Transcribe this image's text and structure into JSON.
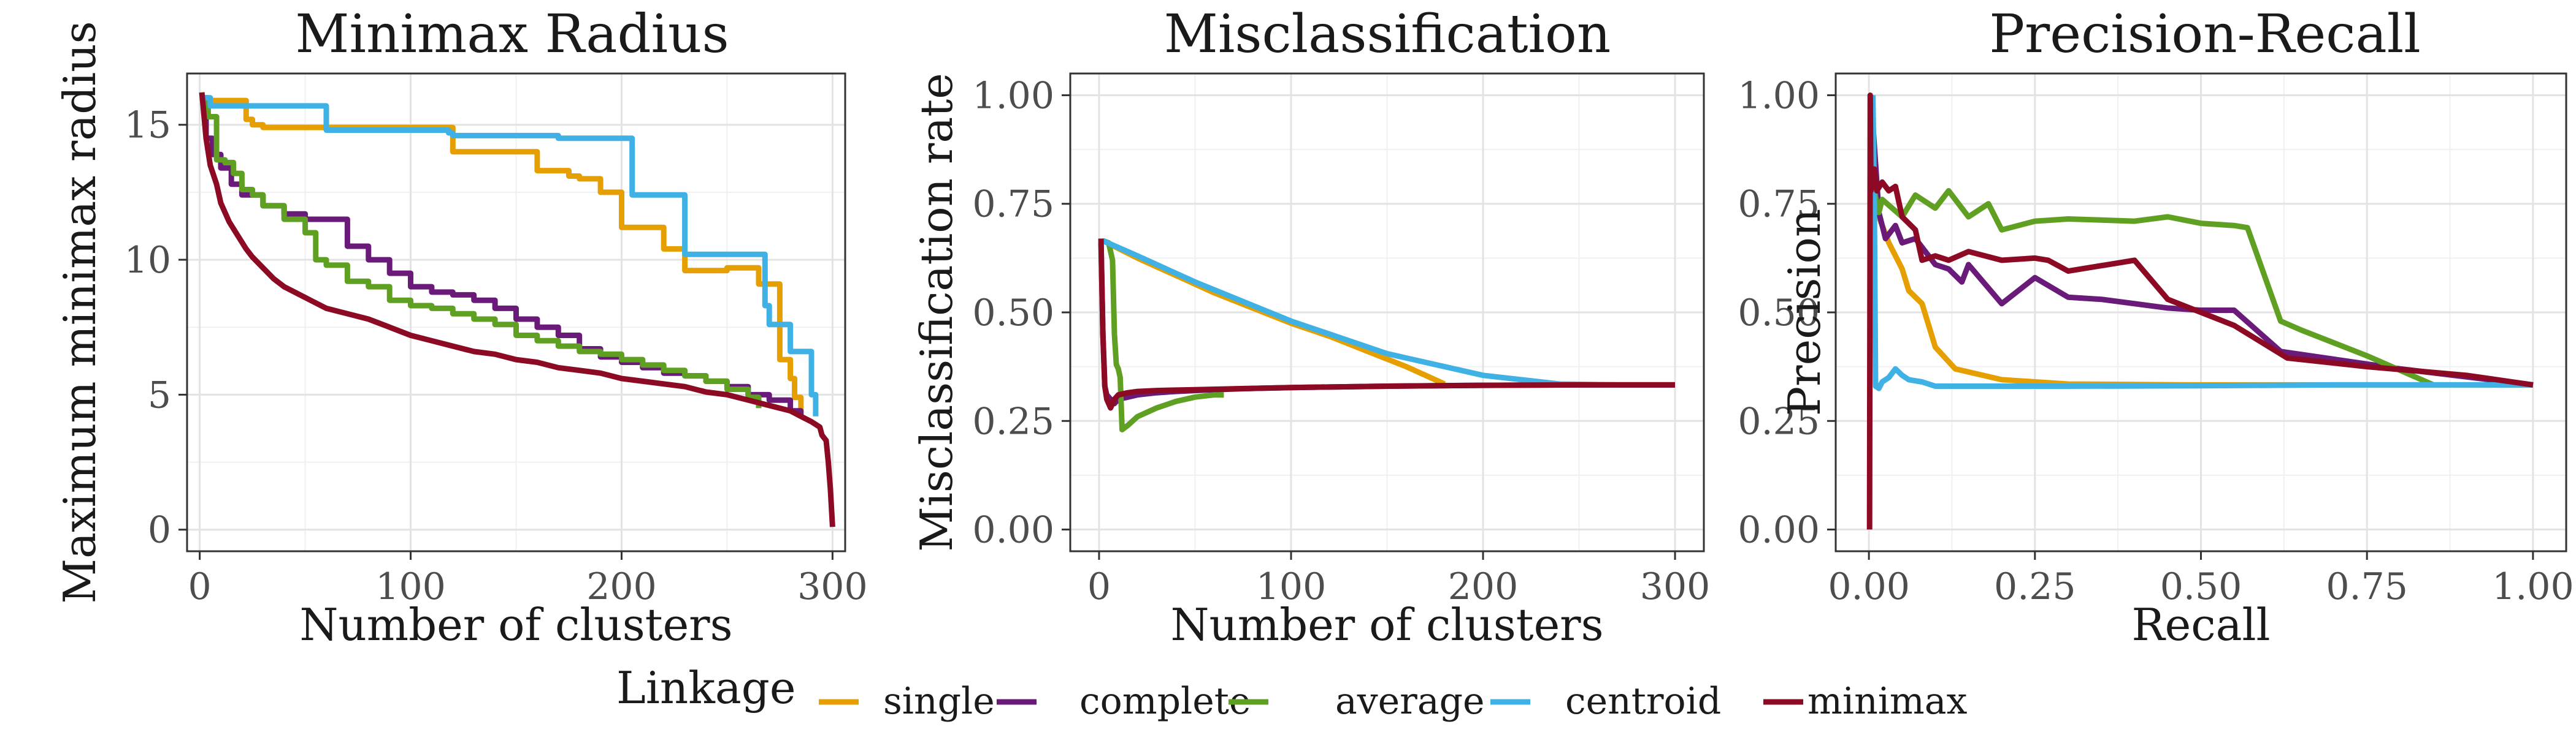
{
  "figure": {
    "legend_title": "Linkage"
  },
  "series_meta": [
    {
      "name": "single",
      "color": "#E69F00"
    },
    {
      "name": "complete",
      "color": "#6A1B7A"
    },
    {
      "name": "average",
      "color": "#5FA023"
    },
    {
      "name": "centroid",
      "color": "#3FB1E5"
    },
    {
      "name": "minimax",
      "color": "#8C0A24"
    }
  ],
  "chart_data": [
    {
      "type": "line",
      "title": "Minimax Radius",
      "xlabel": "Number of clusters",
      "ylabel": "Maximum minimax radius",
      "xlim": [
        -6,
        306
      ],
      "ylim": [
        -0.8,
        16.9
      ],
      "xticks": [
        0,
        100,
        200,
        300
      ],
      "xtick_labels": [
        "0",
        "100",
        "200",
        "300"
      ],
      "yticks": [
        0,
        5,
        10,
        15
      ],
      "ytick_labels": [
        "0",
        "5",
        "10",
        "15"
      ],
      "series": [
        {
          "name": "single",
          "step": true,
          "x": [
            1,
            5,
            8,
            20,
            22,
            25,
            30,
            50,
            60,
            90,
            118,
            120,
            140,
            160,
            175,
            180,
            190,
            200,
            220,
            230,
            250,
            265,
            275,
            280,
            282,
            285
          ],
          "y": [
            16.0,
            15.9,
            15.9,
            15.9,
            15.2,
            15.0,
            14.9,
            14.9,
            14.9,
            14.9,
            14.9,
            14.0,
            14.0,
            13.3,
            13.1,
            13.0,
            12.5,
            11.2,
            10.4,
            9.6,
            9.7,
            9.1,
            6.3,
            5.6,
            4.9,
            4.4
          ]
        },
        {
          "name": "complete",
          "step": true,
          "x": [
            1,
            3,
            6,
            10,
            15,
            20,
            30,
            40,
            50,
            60,
            70,
            80,
            90,
            100,
            110,
            120,
            130,
            140,
            150,
            160,
            170,
            180,
            190,
            200,
            210,
            220,
            230,
            240,
            250,
            260,
            270,
            280,
            285
          ],
          "y": [
            16.0,
            14.5,
            13.9,
            13.4,
            12.8,
            12.4,
            12.0,
            11.7,
            11.5,
            11.5,
            10.5,
            10.0,
            9.5,
            9.0,
            8.8,
            8.7,
            8.5,
            8.2,
            7.8,
            7.5,
            7.2,
            6.7,
            6.4,
            6.2,
            6.0,
            5.8,
            5.7,
            5.5,
            5.3,
            5.0,
            4.8,
            4.4,
            4.2
          ]
        },
        {
          "name": "average",
          "step": true,
          "x": [
            1,
            4,
            8,
            12,
            16,
            20,
            25,
            30,
            40,
            50,
            55,
            60,
            70,
            80,
            90,
            100,
            110,
            120,
            130,
            140,
            150,
            160,
            170,
            180,
            190,
            200,
            210,
            220,
            230,
            240,
            250,
            260,
            265
          ],
          "y": [
            16.0,
            15.3,
            13.7,
            13.6,
            13.2,
            12.6,
            12.4,
            12.0,
            11.5,
            11.0,
            10.0,
            9.8,
            9.2,
            9.0,
            8.5,
            8.3,
            8.2,
            8.0,
            7.8,
            7.6,
            7.2,
            7.0,
            6.8,
            6.6,
            6.5,
            6.3,
            6.1,
            5.9,
            5.7,
            5.5,
            5.2,
            4.9,
            4.5
          ]
        },
        {
          "name": "centroid",
          "step": true,
          "x": [
            1,
            5,
            20,
            40,
            60,
            80,
            100,
            118,
            120,
            160,
            170,
            200,
            205,
            225,
            230,
            265,
            268,
            270,
            280,
            290,
            292
          ],
          "y": [
            16.0,
            15.7,
            15.7,
            15.7,
            14.8,
            14.8,
            14.8,
            14.7,
            14.6,
            14.6,
            14.5,
            14.5,
            12.4,
            12.4,
            10.2,
            10.2,
            8.3,
            7.6,
            6.6,
            5.0,
            4.2
          ]
        },
        {
          "name": "minimax",
          "step": false,
          "x": [
            1,
            3,
            5,
            8,
            10,
            14,
            18,
            22,
            25,
            30,
            35,
            40,
            50,
            60,
            70,
            80,
            90,
            100,
            110,
            120,
            130,
            140,
            150,
            160,
            170,
            180,
            190,
            200,
            210,
            220,
            230,
            240,
            250,
            260,
            270,
            280,
            285,
            290,
            294,
            295,
            297,
            298,
            299,
            300
          ],
          "y": [
            16.2,
            14.5,
            13.5,
            12.8,
            12.1,
            11.4,
            10.9,
            10.4,
            10.1,
            9.7,
            9.3,
            9.0,
            8.6,
            8.2,
            8.0,
            7.8,
            7.5,
            7.2,
            7.0,
            6.8,
            6.6,
            6.5,
            6.3,
            6.2,
            6.0,
            5.9,
            5.8,
            5.6,
            5.5,
            5.4,
            5.3,
            5.1,
            5.0,
            4.8,
            4.6,
            4.4,
            4.2,
            4.0,
            3.8,
            3.5,
            3.3,
            2.5,
            1.5,
            0.1
          ]
        }
      ]
    },
    {
      "type": "line",
      "title": "Misclassification",
      "xlabel": "Number of clusters",
      "ylabel": "Misclassification rate",
      "xlim": [
        -15,
        315
      ],
      "ylim": [
        -0.05,
        1.05
      ],
      "xticks": [
        0,
        100,
        200,
        300
      ],
      "xtick_labels": [
        "0",
        "100",
        "200",
        "300"
      ],
      "yticks": [
        0,
        0.25,
        0.5,
        0.75,
        1
      ],
      "ytick_labels": [
        "0.00",
        "0.25",
        "0.50",
        "0.75",
        "1.00"
      ],
      "series": [
        {
          "name": "single",
          "step": false,
          "x": [
            2,
            20,
            40,
            60,
            80,
            100,
            120,
            140,
            160,
            175,
            180
          ],
          "y": [
            0.665,
            0.625,
            0.585,
            0.545,
            0.51,
            0.475,
            0.445,
            0.41,
            0.375,
            0.345,
            0.335
          ]
        },
        {
          "name": "complete",
          "step": false,
          "x": [
            1,
            2,
            3,
            4,
            6,
            8,
            10,
            15,
            20,
            30,
            40,
            50,
            60,
            80,
            100,
            150,
            200,
            250,
            300
          ],
          "y": [
            0.66,
            0.45,
            0.33,
            0.31,
            0.3,
            0.29,
            0.3,
            0.305,
            0.31,
            0.315,
            0.318,
            0.32,
            0.322,
            0.325,
            0.327,
            0.33,
            0.332,
            0.333,
            0.333
          ]
        },
        {
          "name": "average",
          "step": false,
          "x": [
            2,
            5,
            7,
            8,
            9,
            10,
            11,
            12,
            15,
            20,
            25,
            30,
            40,
            50,
            60,
            65
          ],
          "y": [
            0.665,
            0.66,
            0.62,
            0.45,
            0.38,
            0.37,
            0.35,
            0.23,
            0.24,
            0.26,
            0.27,
            0.28,
            0.295,
            0.305,
            0.31,
            0.31
          ]
        },
        {
          "name": "centroid",
          "step": false,
          "x": [
            2,
            20,
            50,
            100,
            150,
            200,
            240,
            270
          ],
          "y": [
            0.665,
            0.63,
            0.57,
            0.48,
            0.405,
            0.355,
            0.335,
            0.333
          ]
        },
        {
          "name": "minimax",
          "step": false,
          "x": [
            1,
            2,
            3,
            4,
            5,
            6,
            8,
            10,
            15,
            20,
            30,
            50,
            80,
            100,
            150,
            200,
            250,
            300
          ],
          "y": [
            0.67,
            0.45,
            0.33,
            0.3,
            0.29,
            0.28,
            0.3,
            0.31,
            0.315,
            0.318,
            0.32,
            0.322,
            0.325,
            0.327,
            0.33,
            0.332,
            0.333,
            0.333
          ]
        }
      ]
    },
    {
      "type": "line",
      "title": "Precision-Recall",
      "xlabel": "Recall",
      "ylabel": "Precision",
      "xlim": [
        -0.05,
        1.05
      ],
      "ylim": [
        -0.05,
        1.05
      ],
      "xticks": [
        0,
        0.25,
        0.5,
        0.75,
        1
      ],
      "xtick_labels": [
        "0.00",
        "0.25",
        "0.50",
        "0.75",
        "1.00"
      ],
      "yticks": [
        0,
        0.25,
        0.5,
        0.75,
        1
      ],
      "ytick_labels": [
        "0.00",
        "0.25",
        "0.50",
        "0.75",
        "1.00"
      ],
      "series": [
        {
          "name": "single",
          "step": false,
          "x": [
            0.003,
            0.008,
            0.015,
            0.03,
            0.05,
            0.06,
            0.08,
            0.1,
            0.13,
            0.2,
            0.3,
            0.5,
            0.8,
            1.0
          ],
          "y": [
            1.0,
            0.85,
            0.72,
            0.66,
            0.6,
            0.55,
            0.52,
            0.42,
            0.37,
            0.345,
            0.335,
            0.333,
            0.333,
            0.333
          ]
        },
        {
          "name": "complete",
          "step": false,
          "x": [
            0.003,
            0.015,
            0.025,
            0.04,
            0.05,
            0.07,
            0.09,
            0.1,
            0.12,
            0.14,
            0.15,
            0.2,
            0.25,
            0.3,
            0.35,
            0.45,
            0.5,
            0.55,
            0.62,
            0.8,
            1.0
          ],
          "y": [
            1.0,
            0.73,
            0.67,
            0.7,
            0.66,
            0.67,
            0.63,
            0.61,
            0.6,
            0.57,
            0.61,
            0.52,
            0.58,
            0.535,
            0.53,
            0.51,
            0.505,
            0.505,
            0.41,
            0.37,
            0.333
          ]
        },
        {
          "name": "average",
          "step": false,
          "x": [
            0.003,
            0.008,
            0.015,
            0.02,
            0.05,
            0.07,
            0.1,
            0.12,
            0.15,
            0.18,
            0.2,
            0.25,
            0.3,
            0.4,
            0.45,
            0.5,
            0.55,
            0.57,
            0.62,
            0.65,
            0.75,
            0.85
          ],
          "y": [
            1.0,
            0.78,
            0.73,
            0.76,
            0.72,
            0.77,
            0.74,
            0.78,
            0.72,
            0.75,
            0.69,
            0.71,
            0.715,
            0.71,
            0.72,
            0.705,
            0.7,
            0.695,
            0.48,
            0.46,
            0.4,
            0.333
          ]
        },
        {
          "name": "centroid",
          "step": false,
          "x": [
            0.006,
            0.008,
            0.01,
            0.015,
            0.02,
            0.03,
            0.04,
            0.05,
            0.06,
            0.08,
            0.1,
            0.2,
            0.3,
            0.5,
            0.7,
            0.9,
            1.0
          ],
          "y": [
            1.0,
            0.78,
            0.33,
            0.325,
            0.34,
            0.35,
            0.37,
            0.355,
            0.345,
            0.34,
            0.33,
            0.33,
            0.33,
            0.331,
            0.333,
            0.333,
            0.333
          ]
        },
        {
          "name": "minimax",
          "step": false,
          "x": [
            0.001,
            0.002,
            0.003,
            0.008,
            0.012,
            0.02,
            0.03,
            0.04,
            0.05,
            0.07,
            0.08,
            0.1,
            0.12,
            0.15,
            0.2,
            0.25,
            0.27,
            0.3,
            0.4,
            0.45,
            0.55,
            0.63,
            0.75,
            0.9,
            1.0
          ],
          "y": [
            0.0,
            1.0,
            0.78,
            0.83,
            0.78,
            0.8,
            0.78,
            0.79,
            0.72,
            0.69,
            0.62,
            0.63,
            0.62,
            0.64,
            0.62,
            0.625,
            0.62,
            0.595,
            0.62,
            0.53,
            0.47,
            0.395,
            0.375,
            0.355,
            0.333
          ]
        }
      ]
    }
  ]
}
